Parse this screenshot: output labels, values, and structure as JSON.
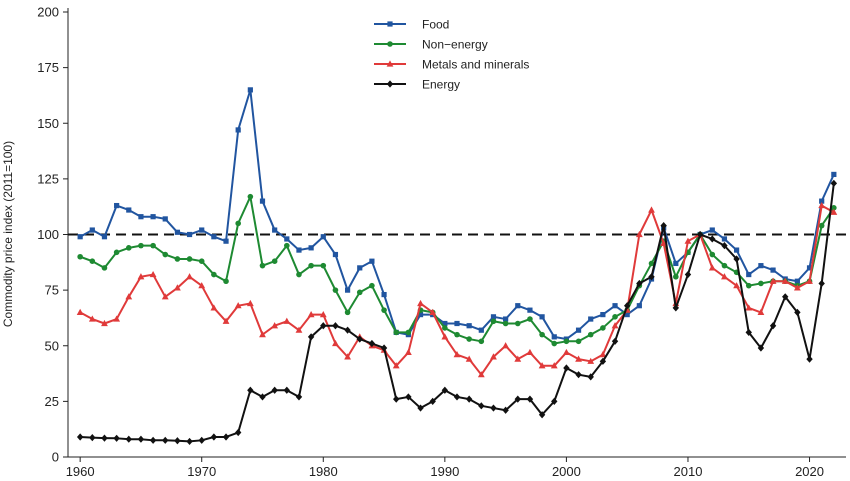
{
  "chart_data": {
    "type": "line",
    "title": "",
    "xlabel": "",
    "ylabel": "Commodity price index (2011=100)",
    "xlim": [
      1959,
      2023
    ],
    "ylim": [
      0,
      200
    ],
    "xticks": [
      "1960",
      "1970",
      "1980",
      "1990",
      "2000",
      "2010",
      "2020"
    ],
    "yticks": [
      "0",
      "25",
      "50",
      "75",
      "100",
      "125",
      "150",
      "175",
      "200"
    ],
    "grid": false,
    "legend_position": "top-center",
    "reference_line": {
      "y": 100,
      "style": "dashed"
    },
    "x": [
      1960,
      1961,
      1962,
      1963,
      1964,
      1965,
      1966,
      1967,
      1968,
      1969,
      1970,
      1971,
      1972,
      1973,
      1974,
      1975,
      1976,
      1977,
      1978,
      1979,
      1980,
      1981,
      1982,
      1983,
      1984,
      1985,
      1986,
      1987,
      1988,
      1989,
      1990,
      1991,
      1992,
      1993,
      1994,
      1995,
      1996,
      1997,
      1998,
      1999,
      2000,
      2001,
      2002,
      2003,
      2004,
      2005,
      2006,
      2007,
      2008,
      2009,
      2010,
      2011,
      2012,
      2013,
      2014,
      2015,
      2016,
      2017,
      2018,
      2019,
      2020,
      2021,
      2022
    ],
    "series": [
      {
        "name": "Food",
        "color": "#2155a0",
        "marker": "square",
        "values": [
          99,
          102,
          99,
          113,
          111,
          108,
          108,
          107,
          101,
          100,
          102,
          99,
          97,
          147,
          165,
          115,
          102,
          98,
          93,
          94,
          99,
          91,
          75,
          85,
          88,
          73,
          56,
          55,
          64,
          64,
          60,
          60,
          59,
          57,
          63,
          62,
          68,
          66,
          63,
          54,
          53,
          57,
          62,
          64,
          68,
          64,
          68,
          80,
          103,
          87,
          92,
          100,
          102,
          98,
          93,
          82,
          86,
          84,
          80,
          79,
          85,
          115,
          127
        ]
      },
      {
        "name": "Non−energy",
        "color": "#1e8a32",
        "marker": "circle",
        "values": [
          90,
          88,
          85,
          92,
          94,
          95,
          95,
          91,
          89,
          89,
          88,
          82,
          79,
          105,
          117,
          86,
          88,
          95,
          82,
          86,
          86,
          75,
          65,
          74,
          77,
          66,
          56,
          56,
          66,
          65,
          58,
          55,
          53,
          52,
          61,
          60,
          60,
          62,
          55,
          51,
          52,
          52,
          55,
          58,
          63,
          66,
          77,
          87,
          97,
          81,
          92,
          100,
          91,
          86,
          83,
          77,
          78,
          79,
          79,
          77,
          79,
          104,
          112
        ]
      },
      {
        "name": "Metals and minerals",
        "color": "#e03a3a",
        "marker": "triangle",
        "values": [
          65,
          62,
          60,
          62,
          72,
          81,
          82,
          72,
          76,
          81,
          77,
          67,
          61,
          68,
          69,
          55,
          59,
          61,
          57,
          64,
          64,
          51,
          45,
          54,
          50,
          48,
          41,
          47,
          69,
          65,
          54,
          46,
          44,
          37,
          45,
          50,
          44,
          47,
          41,
          41,
          47,
          44,
          43,
          46,
          59,
          66,
          100,
          111,
          96,
          69,
          97,
          100,
          85,
          81,
          77,
          67,
          65,
          79,
          79,
          76,
          79,
          113,
          110
        ]
      },
      {
        "name": "Energy",
        "color": "#111111",
        "marker": "diamond",
        "values": [
          9,
          8.7,
          8.5,
          8.4,
          8,
          8,
          7.5,
          7.5,
          7.3,
          7,
          7.5,
          9,
          9,
          11,
          30,
          27,
          30,
          30,
          27,
          54,
          59,
          59,
          57,
          53,
          51,
          49,
          26,
          27,
          22,
          25,
          30,
          27,
          26,
          23,
          22,
          21,
          26,
          26,
          19,
          25,
          40,
          37,
          36,
          43,
          52,
          68,
          78,
          81,
          104,
          67,
          82,
          100,
          98,
          95,
          89,
          56,
          49,
          59,
          72,
          65,
          44,
          78,
          123
        ]
      }
    ]
  }
}
